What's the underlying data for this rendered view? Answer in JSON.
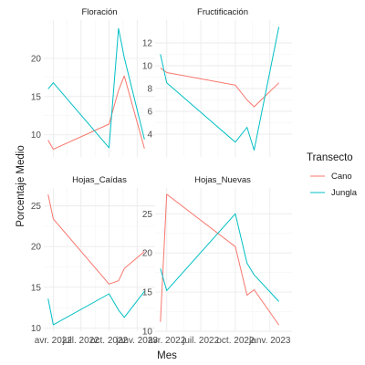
{
  "chart_data": {
    "type": "line",
    "facet_wrap": true,
    "theme": "minimal",
    "grid": true,
    "legend_position": "right",
    "xlabel": "Mes",
    "ylabel": "Porcentaje Medio",
    "xtick_labels": [
      "avr. 2022",
      "juil. 2022",
      "oct. 2022",
      "janv. 2023"
    ],
    "legend": {
      "title": "Transecto",
      "entries": [
        {
          "name": "Cano",
          "color": "#F8766D"
        },
        {
          "name": "Jungla",
          "color": "#00BFC4"
        }
      ]
    },
    "panels": [
      {
        "title": "Floración",
        "yticks": [
          10,
          15,
          20
        ],
        "series": [
          {
            "name": "Cano",
            "points": [
              [
                "2022-03-15",
                9.3
              ],
              [
                "2022-04-01",
                8.1
              ],
              [
                "2022-10-01",
                11.4
              ],
              [
                "2022-11-01",
                15.8
              ],
              [
                "2022-11-20",
                17.7
              ],
              [
                "2023-01-25",
                8.2
              ]
            ]
          },
          {
            "name": "Jungla",
            "points": [
              [
                "2022-03-15",
                16.0
              ],
              [
                "2022-04-01",
                16.8
              ],
              [
                "2022-10-01",
                8.3
              ],
              [
                "2022-11-01",
                23.9
              ],
              [
                "2022-11-20",
                20.1
              ],
              [
                "2023-01-25",
                9.4
              ]
            ]
          }
        ]
      },
      {
        "title": "Fructificación",
        "yticks": [
          4,
          6,
          8,
          10,
          12
        ],
        "series": [
          {
            "name": "Cano",
            "points": [
              [
                "2022-03-15",
                9.8
              ],
              [
                "2022-04-01",
                9.4
              ],
              [
                "2022-10-01",
                8.3
              ],
              [
                "2022-11-01",
                7.0
              ],
              [
                "2022-11-20",
                6.4
              ],
              [
                "2023-01-25",
                8.5
              ]
            ]
          },
          {
            "name": "Jungla",
            "points": [
              [
                "2022-03-15",
                11.0
              ],
              [
                "2022-04-01",
                8.5
              ],
              [
                "2022-10-01",
                3.3
              ],
              [
                "2022-11-01",
                4.6
              ],
              [
                "2022-11-20",
                2.6
              ],
              [
                "2023-01-25",
                13.4
              ]
            ]
          }
        ]
      },
      {
        "title": "Hojas_Caídas",
        "yticks": [
          10,
          15,
          20,
          25
        ],
        "series": [
          {
            "name": "Cano",
            "points": [
              [
                "2022-03-15",
                26.4
              ],
              [
                "2022-04-01",
                23.4
              ],
              [
                "2022-10-01",
                15.4
              ],
              [
                "2022-11-01",
                15.8
              ],
              [
                "2022-11-20",
                17.3
              ],
              [
                "2023-01-25",
                19.4
              ]
            ]
          },
          {
            "name": "Jungla",
            "points": [
              [
                "2022-03-15",
                13.6
              ],
              [
                "2022-04-01",
                10.4
              ],
              [
                "2022-10-01",
                14.2
              ],
              [
                "2022-11-01",
                12.2
              ],
              [
                "2022-11-20",
                11.3
              ],
              [
                "2023-01-25",
                14.5
              ]
            ]
          }
        ]
      },
      {
        "title": "Hojas_Nuevas",
        "yticks": [
          10,
          15,
          20,
          25
        ],
        "series": [
          {
            "name": "Cano",
            "points": [
              [
                "2022-03-15",
                11.2
              ],
              [
                "2022-04-01",
                27.5
              ],
              [
                "2022-10-01",
                20.8
              ],
              [
                "2022-11-01",
                14.6
              ],
              [
                "2022-11-20",
                15.3
              ],
              [
                "2023-01-25",
                10.8
              ]
            ]
          },
          {
            "name": "Jungla",
            "points": [
              [
                "2022-03-15",
                18.0
              ],
              [
                "2022-04-01",
                15.2
              ],
              [
                "2022-10-01",
                25.0
              ],
              [
                "2022-11-01",
                18.7
              ],
              [
                "2022-11-20",
                17.2
              ],
              [
                "2023-01-25",
                13.8
              ]
            ]
          }
        ]
      }
    ]
  }
}
